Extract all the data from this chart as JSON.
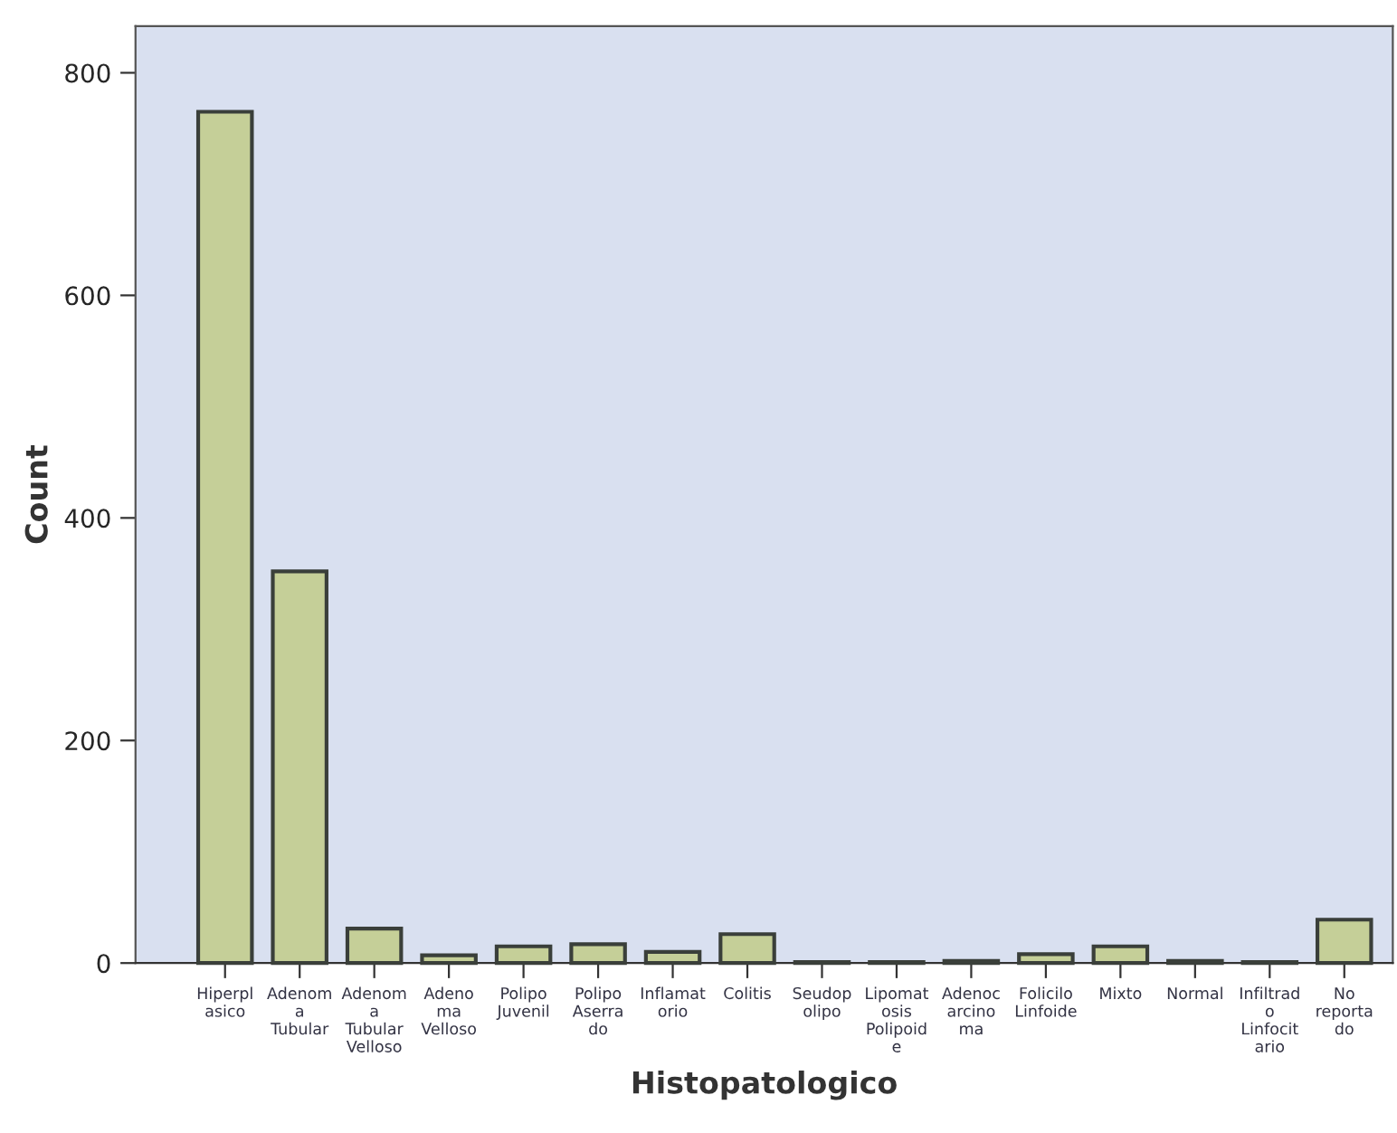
{
  "chart_data": {
    "type": "bar",
    "xlabel": "Histopatologico",
    "ylabel": "Count",
    "categories": [
      "Hiperpl\nasico",
      "Adenom\na\nTubular",
      "Adenom\na\nTubular\nVelloso",
      "Adeno\nma\nVelloso",
      "Polipo\nJuvenil",
      "Polipo\nAserra\ndo",
      "Inflamat\norio",
      "Colitis",
      "Seudop\nolipo",
      "Lipomat\nosis\nPolipoid\ne",
      "Adenoc\narcino\nma",
      "Folicilo\nLinfoide",
      "Mixto",
      "Normal",
      "Infiltrad\no\nLinfocit\nario",
      "No\nreporta\ndo"
    ],
    "values": [
      765,
      352,
      31,
      7,
      15,
      17,
      10,
      26,
      1,
      1,
      2,
      8,
      15,
      2,
      1,
      39
    ],
    "color": "#c5cf98",
    "ylim": [
      0,
      842
    ],
    "yticks": [
      0,
      200,
      400,
      600,
      800
    ],
    "grid": false
  }
}
